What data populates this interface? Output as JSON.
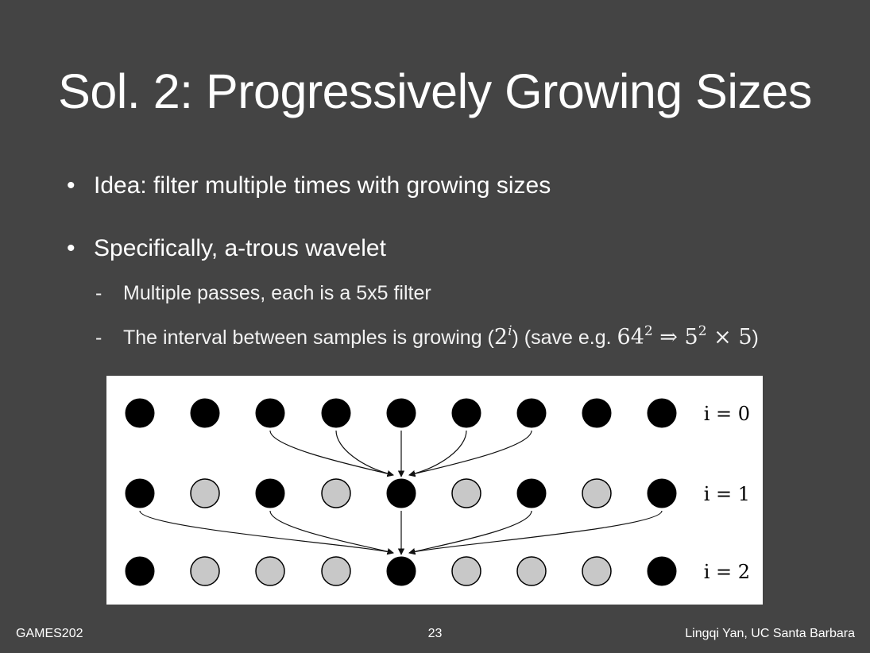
{
  "slide": {
    "title": "Sol. 2: Progressively Growing Sizes",
    "bullets": [
      {
        "marker": "•",
        "text": "Idea: filter multiple times with growing sizes"
      },
      {
        "marker": "•",
        "text": "Specifically, a-trous wavelet",
        "sub_items": [
          {
            "marker": "-",
            "text": "Multiple passes, each is a 5x5 filter"
          },
          {
            "marker": "-",
            "text_before": "The interval between samples is growing (",
            "formula_interval_base": "2",
            "formula_interval_exp": "i",
            "text_middle": ") (save e.g. ",
            "formula_save_a_base": "64",
            "formula_save_a_exp": "2",
            "formula_arrow": "⇒",
            "formula_save_b_base": "5",
            "formula_save_b_exp": "2",
            "formula_times": "× 5",
            "text_after": ")"
          }
        ]
      }
    ]
  },
  "diagram": {
    "rows": [
      {
        "label": "i = 0",
        "nodes": [
          "black",
          "black",
          "black",
          "black",
          "black",
          "black",
          "black",
          "black",
          "black"
        ],
        "arrow_sources": [
          2,
          3,
          5,
          6
        ],
        "straight_source": 4
      },
      {
        "label": "i = 1",
        "nodes": [
          "black",
          "gray",
          "black",
          "gray",
          "black",
          "gray",
          "black",
          "gray",
          "black"
        ],
        "arrow_sources": [
          0,
          2,
          6,
          8
        ],
        "straight_source": 4
      },
      {
        "label": "i = 2",
        "nodes": [
          "black",
          "gray",
          "gray",
          "gray",
          "black",
          "gray",
          "gray",
          "gray",
          "black"
        ]
      }
    ],
    "target_node": 4,
    "colors": {
      "black": "#000000",
      "gray": "#c8c8c8",
      "arrow": "#111111"
    }
  },
  "footer": {
    "left": "GAMES202",
    "page_number": "23",
    "right": "Lingqi Yan, UC Santa Barbara"
  }
}
